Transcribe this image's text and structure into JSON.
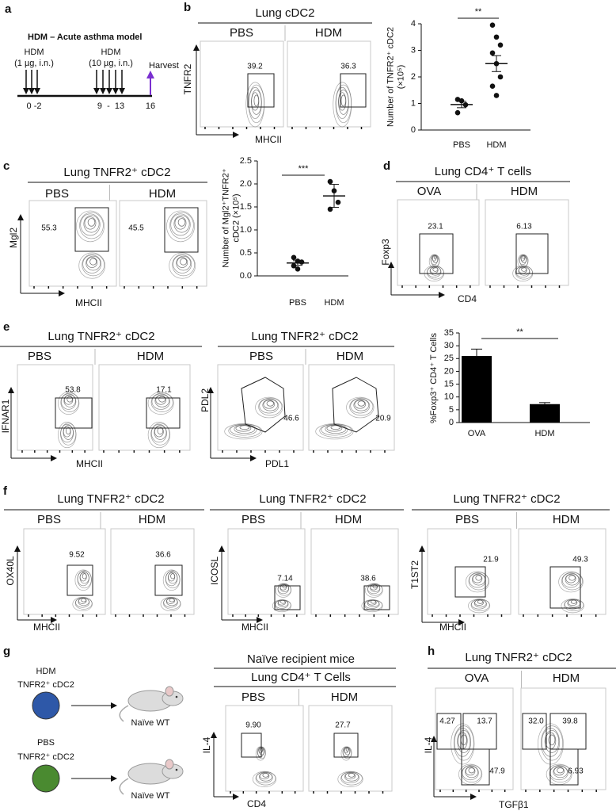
{
  "panel_labels": [
    "a",
    "b",
    "c",
    "d",
    "e",
    "f",
    "g",
    "h"
  ],
  "protocol": {
    "title": "HDM – Acute asthma model",
    "doses": [
      {
        "label": "HDM",
        "detail": "(1 µg, i.n.)",
        "days": "0 -2"
      },
      {
        "label": "HDM",
        "detail": "(10 µg, i.n.)",
        "days": "9  -  13"
      }
    ],
    "harvest": "Harvest",
    "harvest_day": "16"
  },
  "flow_plots": [
    {
      "title": "Lung cDC2",
      "conditions": [
        "PBS",
        "HDM"
      ],
      "gates": [
        [
          "39.2"
        ],
        [
          "36.3"
        ]
      ],
      "y_axis": "TNFR2",
      "x_axis": "MHCII"
    },
    {
      "title": "Lung TNFR2⁺ cDC2",
      "conditions": [
        "PBS",
        "HDM"
      ],
      "gates": [
        [
          "55.3"
        ],
        [
          "45.5"
        ]
      ],
      "y_axis": "Mgl2",
      "x_axis": "MHCII"
    },
    {
      "title": "Lung CD4⁺ T cells",
      "conditions": [
        "OVA",
        "HDM"
      ],
      "gates": [
        [
          "23.1"
        ],
        [
          "6.13"
        ]
      ],
      "y_axis": "Foxp3",
      "x_axis": "CD4"
    },
    {
      "title": "Lung TNFR2⁺ cDC2",
      "conditions": [
        "PBS",
        "HDM"
      ],
      "gates": [
        [
          "53.8"
        ],
        [
          "17.1"
        ]
      ],
      "y_axis": "IFNAR1",
      "x_axis": "MHCII"
    },
    {
      "title": "Lung TNFR2⁺ cDC2",
      "conditions": [
        "PBS",
        "HDM"
      ],
      "gates": [
        [
          "46.6"
        ],
        [
          "20.9"
        ]
      ],
      "y_axis": "PDL2",
      "x_axis": "PDL1"
    },
    {
      "title": "Lung TNFR2⁺ cDC2",
      "conditions": [
        "PBS",
        "HDM"
      ],
      "gates": [
        [
          "9.52"
        ],
        [
          "36.6"
        ]
      ],
      "y_axis": "OX40L",
      "x_axis": "MHCII"
    },
    {
      "title": "Lung TNFR2⁺ cDC2",
      "conditions": [
        "PBS",
        "HDM"
      ],
      "gates": [
        [
          "7.14"
        ],
        [
          "38.6"
        ]
      ],
      "y_axis": "ICOSL",
      "x_axis": "MHCII"
    },
    {
      "title": "Lung TNFR2⁺ cDC2",
      "conditions": [
        "PBS",
        "HDM"
      ],
      "gates": [
        [
          "21.9"
        ],
        [
          "49.3"
        ]
      ],
      "y_axis": "T1ST2",
      "x_axis": "MHCII"
    },
    {
      "header": "Naïve recipient mice",
      "title": "Lung CD4⁺ T Cells",
      "conditions": [
        "PBS",
        "HDM"
      ],
      "condition_colors": [
        "#3f8f2f",
        "#2d5bb0"
      ],
      "gates": [
        [
          "9.90"
        ],
        [
          "27.7"
        ]
      ],
      "y_axis": "IL-4",
      "x_axis": "CD4"
    },
    {
      "title": "Lung TNFR2⁺ cDC2",
      "conditions": [
        "OVA",
        "HDM"
      ],
      "gates": [
        [
          "4.27",
          "13.7",
          "47.9"
        ],
        [
          "32.0",
          "39.8",
          "6.93"
        ]
      ],
      "y_axis": "IL-4",
      "x_axis": "TGFβ1"
    }
  ],
  "transfer": {
    "donors": [
      {
        "treatment": "HDM",
        "cell": "TNFR2⁺ cDC2",
        "color": "#2e58a8"
      },
      {
        "treatment": "PBS",
        "cell": "TNFR2⁺ cDC2",
        "color": "#4a8a30"
      }
    ],
    "recipients": [
      "Naïve WT",
      "Naïve WT"
    ]
  },
  "chart_data": [
    {
      "type": "dot",
      "y_label": [
        "Number of TNFR2⁺ cDC2",
        "(×10⁵)"
      ],
      "categories": [
        "PBS",
        "HDM"
      ],
      "points": [
        [
          1.15,
          1.1,
          0.95,
          0.65
        ],
        [
          3.95,
          3.5,
          3.2,
          2.9,
          2.5,
          2.0,
          1.65,
          1.3
        ]
      ],
      "means": [
        0.96,
        2.5
      ],
      "errors": [
        0.12,
        0.3
      ],
      "ylim": [
        0,
        4
      ],
      "yticks": [
        0,
        1,
        2,
        3,
        4
      ],
      "significance": "**"
    },
    {
      "type": "dot",
      "y_label": [
        "Number of Mgl2⁺TNFR2⁺",
        "cDC2 (×10⁵)"
      ],
      "categories": [
        "PBS",
        "HDM"
      ],
      "points": [
        [
          0.4,
          0.32,
          0.3,
          0.22,
          0.15
        ],
        [
          2.05,
          1.85,
          1.6,
          1.45
        ]
      ],
      "means": [
        0.28,
        1.74
      ],
      "errors": [
        0.05,
        0.25
      ],
      "ylim": [
        0,
        2.5
      ],
      "yticks": [
        {
          "value": 0,
          "label": "0.0"
        },
        0.5,
        {
          "value": 1,
          "label": "1.0"
        },
        1.5,
        {
          "value": 2,
          "label": "2.0"
        },
        2.5
      ],
      "significance": "***"
    },
    {
      "type": "bar",
      "y_label": [
        "%Foxp3⁺ CD4⁺ T Cells"
      ],
      "categories": [
        "OVA",
        "HDM"
      ],
      "values": [
        26,
        7.2
      ],
      "errors": [
        2.7,
        0.6
      ],
      "color": "#000000",
      "ylim": [
        0,
        35
      ],
      "yticks": [
        0,
        5,
        10,
        15,
        20,
        25,
        30,
        35
      ],
      "significance": "**"
    }
  ]
}
